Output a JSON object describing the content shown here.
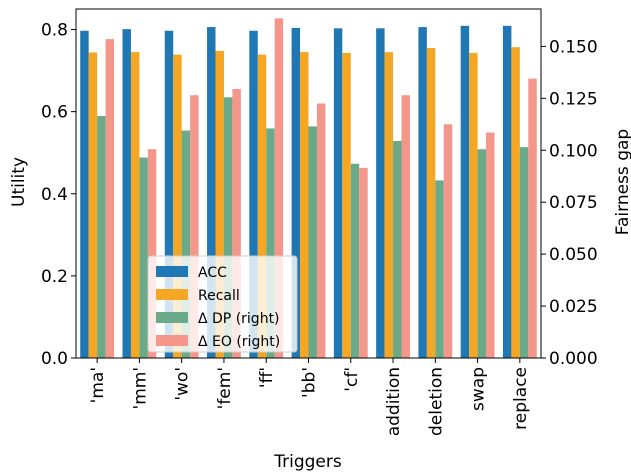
{
  "chart_data": {
    "type": "bar",
    "xlabel": "Triggers",
    "ylabel": "Utility",
    "ylabel_right": "Fairness gap",
    "categories": [
      "'ma'",
      "'mm'",
      "'wo'",
      "'fem'",
      "'ff'",
      "'bb'",
      "'cf'",
      "addition",
      "deletion",
      "swap",
      "replace"
    ],
    "ylim": [
      0,
      0.85
    ],
    "ylim_right": [
      0,
      0.168
    ],
    "yticks": [
      "0.0",
      "0.2",
      "0.4",
      "0.6",
      "0.8"
    ],
    "yticks_right": [
      "0.000",
      "0.025",
      "0.050",
      "0.075",
      "0.100",
      "0.125",
      "0.150"
    ],
    "legend_position": "lower-left",
    "series": [
      {
        "name": "ACC",
        "axis": "left",
        "color": "#1f77b4",
        "values": [
          0.797,
          0.801,
          0.797,
          0.806,
          0.797,
          0.804,
          0.803,
          0.803,
          0.806,
          0.809,
          0.809
        ]
      },
      {
        "name": "Recall",
        "axis": "left",
        "color": "#f5a623",
        "values": [
          0.744,
          0.745,
          0.739,
          0.748,
          0.739,
          0.745,
          0.743,
          0.745,
          0.755,
          0.743,
          0.757
        ]
      },
      {
        "name": "Δ DP (right)",
        "axis": "right",
        "color": "#6aaa88",
        "values": [
          0.1165,
          0.0965,
          0.1095,
          0.1255,
          0.1105,
          0.1115,
          0.0935,
          0.1045,
          0.0855,
          0.1005,
          0.1015
        ]
      },
      {
        "name": "Δ EO (right)",
        "axis": "right",
        "color": "#f4978a",
        "values": [
          0.1535,
          0.1005,
          0.1265,
          0.1295,
          0.1635,
          0.1225,
          0.0915,
          0.1265,
          0.1125,
          0.1085,
          0.1345
        ]
      }
    ]
  }
}
